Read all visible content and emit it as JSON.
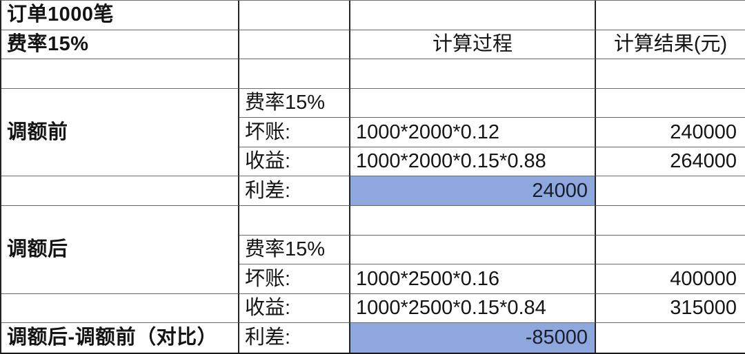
{
  "colors": {
    "highlight_fill": "#8EA7DC",
    "highlight_text": "#181D2B",
    "grid_line": "#242424",
    "text": "#141414"
  },
  "top": {
    "order_count": "订单1000笔",
    "fee_rate": "费率15%"
  },
  "headers": {
    "process": "计算过程",
    "result": "计算结果(元)"
  },
  "before": {
    "title": "调额前",
    "fee": "费率15%",
    "bad_debt_label": "坏账:",
    "bad_debt_formula": "1000*2000*0.12",
    "bad_debt_result": "240000",
    "revenue_label": "收益:",
    "revenue_formula": "1000*2000*0.15*0.88",
    "revenue_result": "264000",
    "margin_label": "利差:",
    "margin_value": "24000"
  },
  "after": {
    "title": "调额后",
    "fee": "费率15%",
    "bad_debt_label": "坏账:",
    "bad_debt_formula": "1000*2500*0.16",
    "bad_debt_result": "400000",
    "revenue_label": "收益:",
    "revenue_formula": "1000*2500*0.15*0.84",
    "revenue_result": "315000"
  },
  "comparison": {
    "title": "调额后-调额前（对比）",
    "margin_label": "利差:",
    "margin_value": "-85000"
  }
}
